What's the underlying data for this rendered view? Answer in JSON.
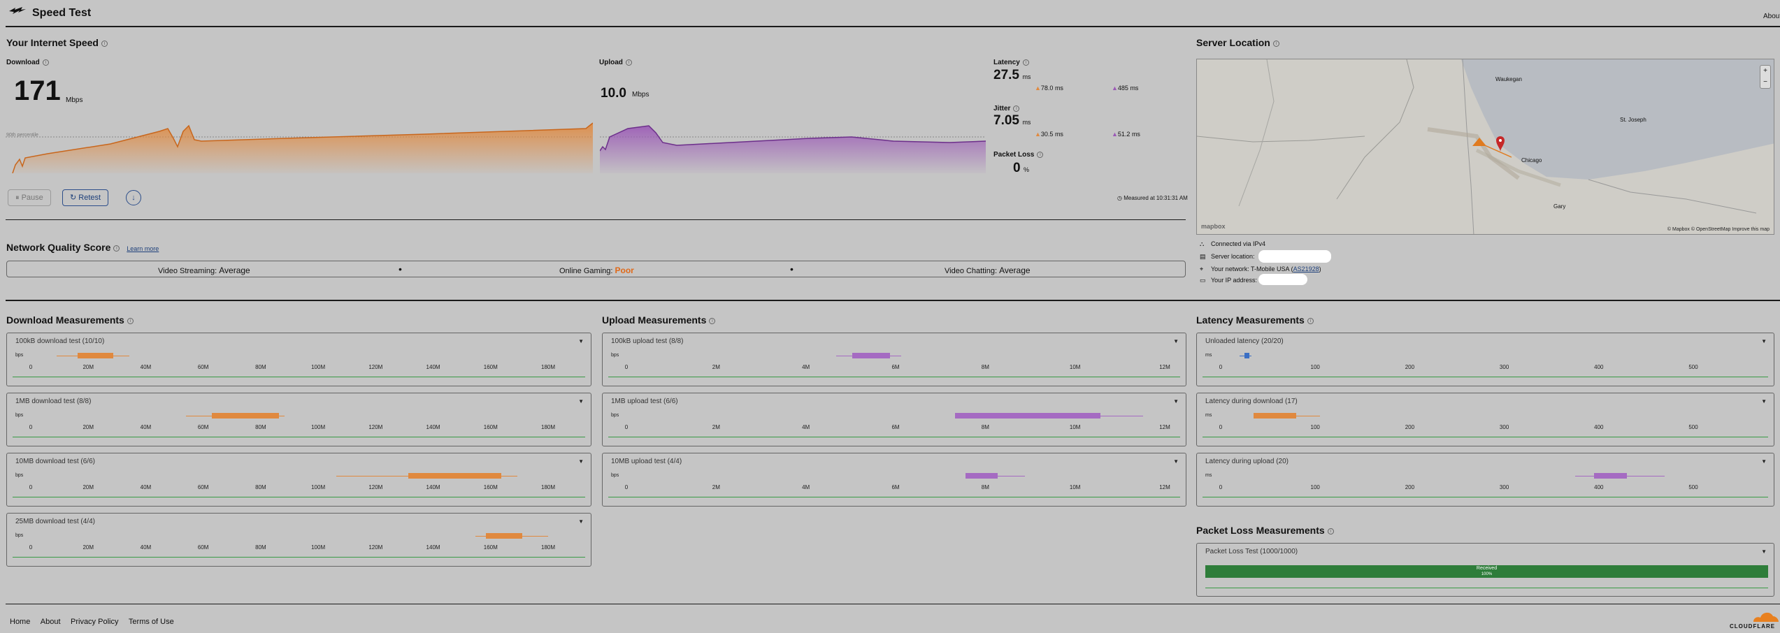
{
  "app": {
    "title": "Speed Test",
    "about_link": "About"
  },
  "speed": {
    "section_title": "Your Internet Speed",
    "download_label": "Download",
    "download_value": "171",
    "download_unit": "Mbps",
    "percentile_label": "90th percentile",
    "upload_label": "Upload",
    "upload_value": "10.0",
    "upload_unit": "Mbps",
    "latency_label": "Latency",
    "latency_value": "27.5",
    "latency_unit": "ms",
    "latency_down": "78.0 ms",
    "latency_up": "485 ms",
    "jitter_label": "Jitter",
    "jitter_value": "7.05",
    "jitter_unit": "ms",
    "jitter_down": "30.5 ms",
    "jitter_up": "51.2 ms",
    "packet_loss_label": "Packet Loss",
    "packet_loss_value": "0",
    "packet_loss_unit": "%",
    "pause_label": "Pause",
    "retest_label": "Retest",
    "measured_at": "Measured at 10:31:31 AM"
  },
  "nqs": {
    "title": "Network Quality Score",
    "learn_more": "Learn more",
    "streaming_label": "Video Streaming:",
    "streaming_value": "Average",
    "gaming_label": "Online Gaming:",
    "gaming_value": "Poor",
    "chatting_label": "Video Chatting:",
    "chatting_value": "Average",
    "poor_color": "#e06a1a"
  },
  "server": {
    "title": "Server Location",
    "map_places": [
      "Waukegan",
      "St. Joseph",
      "Chicago",
      "Gary"
    ],
    "attribution": "© Mapbox © OpenStreetMap  Improve this map",
    "mapbox_logo": "mapbox",
    "zoom_in": "+",
    "zoom_out": "−",
    "connected_via": "Connected via IPv4",
    "server_location_label": "Server location:",
    "network_label": "Your network:",
    "network_value": "T-Mobile USA",
    "network_asn": "AS21928",
    "ip_label": "Your IP address:"
  },
  "download_measurements": {
    "title": "Download Measurements",
    "unit": "bps",
    "ticks": [
      "0",
      "20M",
      "40M",
      "60M",
      "80M",
      "100M",
      "120M",
      "140M",
      "160M",
      "180M"
    ],
    "tests": [
      {
        "name": "100kB download test",
        "count": "(10/10)"
      },
      {
        "name": "1MB download test",
        "count": "(8/8)"
      },
      {
        "name": "10MB download test",
        "count": "(6/6)"
      },
      {
        "name": "25MB download test",
        "count": "(4/4)"
      }
    ]
  },
  "upload_measurements": {
    "title": "Upload Measurements",
    "unit": "bps",
    "ticks": [
      "0",
      "2M",
      "4M",
      "6M",
      "8M",
      "10M",
      "12M"
    ],
    "tests": [
      {
        "name": "100kB upload test",
        "count": "(8/8)"
      },
      {
        "name": "1MB upload test",
        "count": "(6/6)"
      },
      {
        "name": "10MB upload test",
        "count": "(4/4)"
      }
    ]
  },
  "latency_measurements": {
    "title": "Latency Measurements",
    "unit": "ms",
    "ticks": [
      "0",
      "100",
      "200",
      "300",
      "400",
      "500"
    ],
    "tests": [
      {
        "name": "Unloaded latency",
        "count": "(20/20)"
      },
      {
        "name": "Latency during download",
        "count": "(17)"
      },
      {
        "name": "Latency during upload",
        "count": "(20)"
      }
    ]
  },
  "packet_loss_measurements": {
    "title": "Packet Loss Measurements",
    "test_name": "Packet Loss Test",
    "test_count": "(1000/1000)",
    "bar_label": "Received",
    "bar_pct": "100%"
  },
  "footer": {
    "links": [
      "Home",
      "About",
      "Privacy Policy",
      "Terms of Use"
    ],
    "logo": "CLOUDFLARE"
  },
  "colors": {
    "download": "#e0893f",
    "upload": "#9b59b6",
    "latency": "#3b6fc4",
    "green": "#2e7d3a"
  }
}
